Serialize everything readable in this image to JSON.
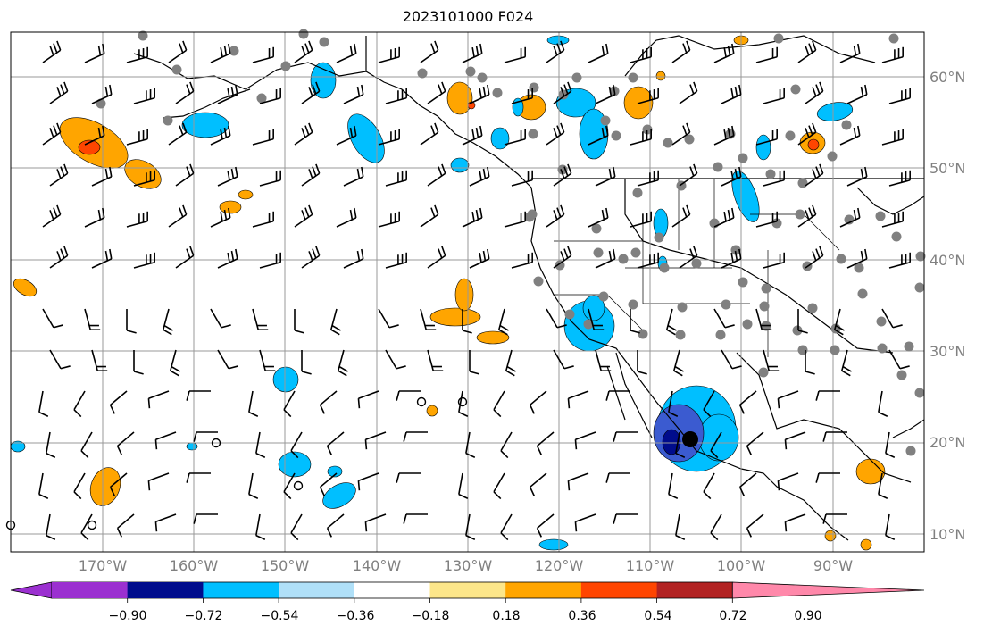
{
  "title": "2023101000 F024",
  "lat_labels": [
    "60°N",
    "50°N",
    "40°N",
    "30°N",
    "20°N",
    "10°N"
  ],
  "lon_labels": [
    "170°W",
    "160°W",
    "150°W",
    "140°W",
    "130°W",
    "120°W",
    "110°W",
    "100°W",
    "90°W"
  ],
  "colorbar": {
    "tick_labels": [
      "−0.90",
      "−0.72",
      "−0.54",
      "−0.36",
      "−0.18",
      "0.18",
      "0.36",
      "0.54",
      "0.72",
      "0.90"
    ],
    "colors": [
      "#9b30d0",
      "#000c8c",
      "#3b5bd0",
      "#00bfff",
      "#b0e0f8",
      "#ffffff",
      "#fce68a",
      "#ffa500",
      "#ff4500",
      "#b22222",
      "#ff88aa"
    ]
  },
  "colors": {
    "land_line": "#000000",
    "grid": "#999999",
    "station": "#808080",
    "orange": "#ffa500",
    "red": "#ff4500",
    "cyan": "#00bfff",
    "blue": "#3b5bd0",
    "navy": "#000c8c"
  }
}
